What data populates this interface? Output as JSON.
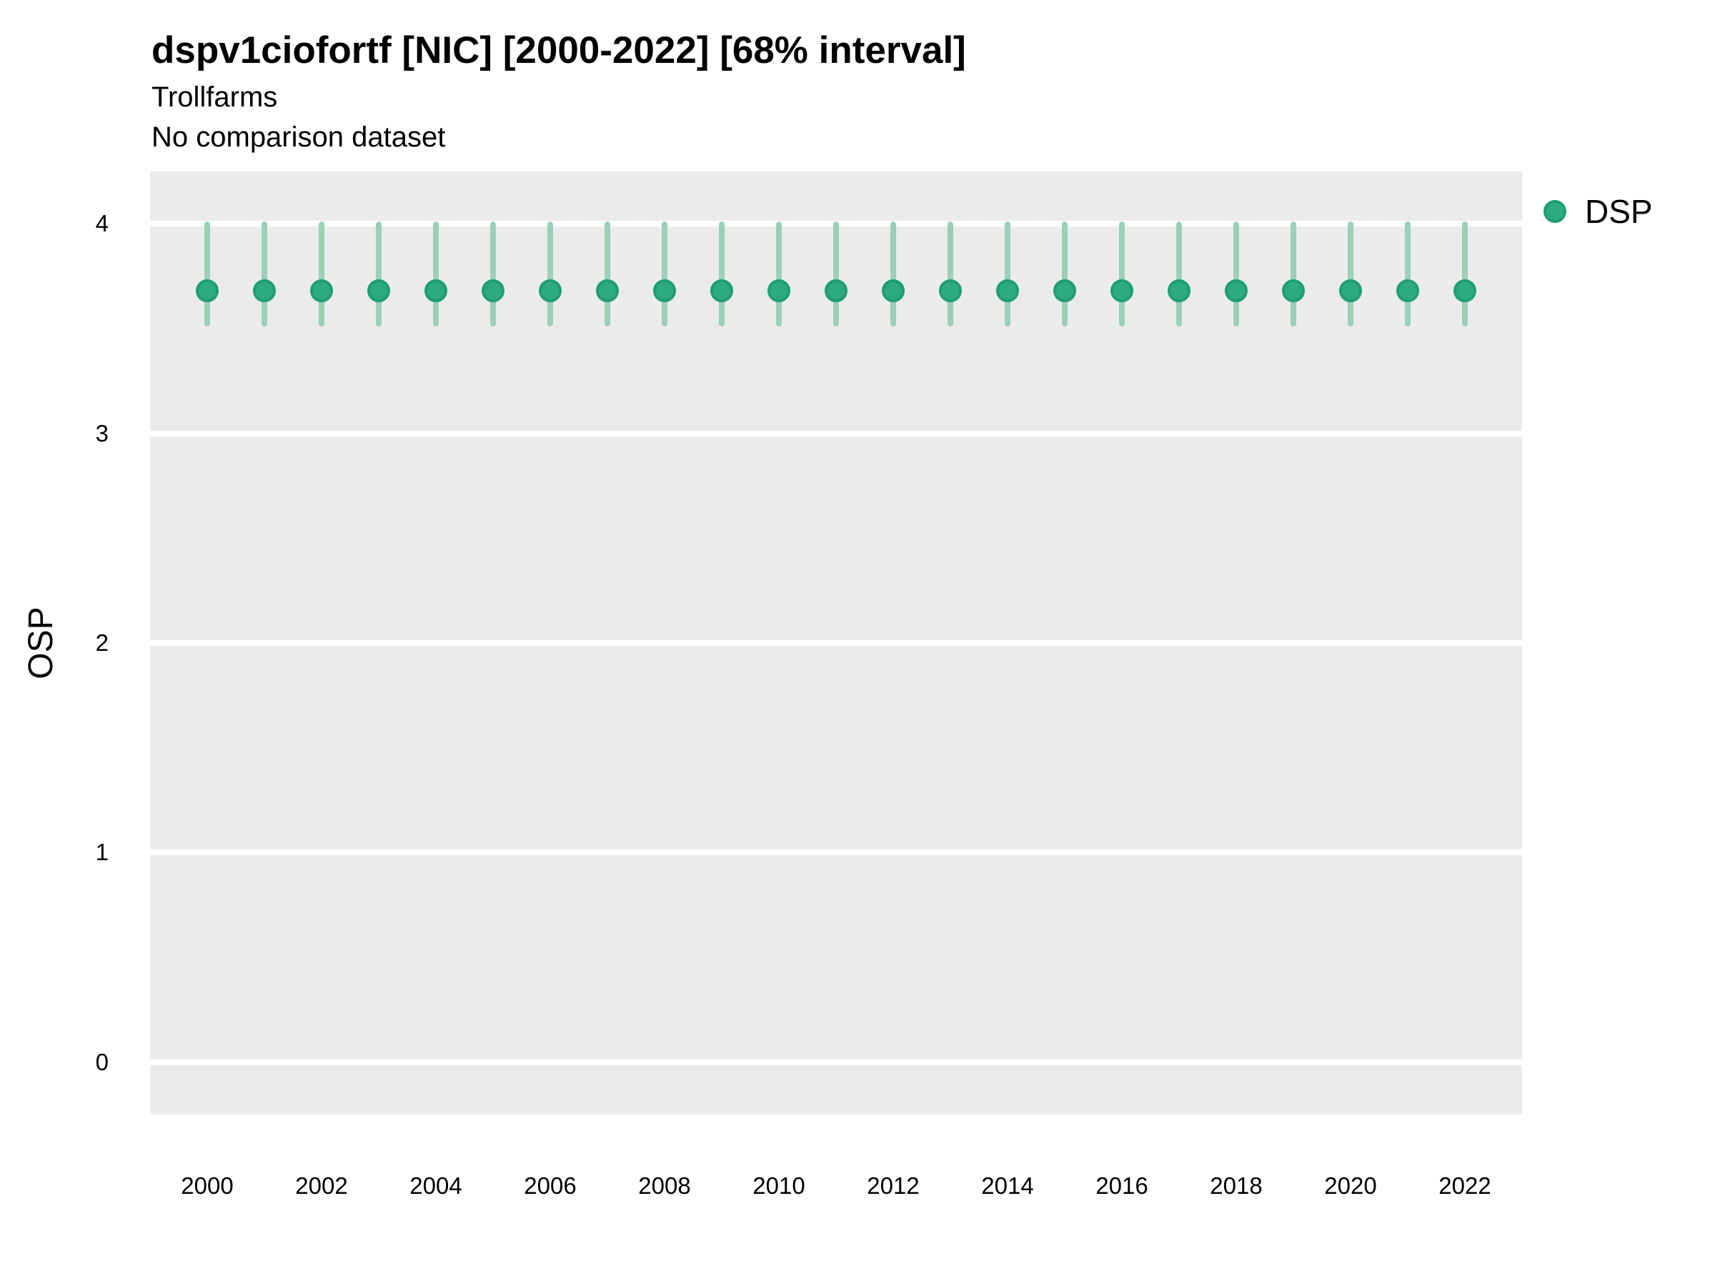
{
  "header": {
    "title": "dspv1ciofortf [NIC] [2000-2022] [68% interval]",
    "subtitle1": "Trollfarms",
    "subtitle2": "No comparison dataset"
  },
  "axes": {
    "y_label": "OSP"
  },
  "legend": {
    "label": "DSP"
  },
  "colors": {
    "panel_background": "#EBEBEB",
    "gridline": "#FFFFFF",
    "point_fill": "#2DAB7F",
    "point_stroke": "#1F9E72",
    "interval_bar": "#9AD0B8",
    "text": "#000000",
    "page_background": "#FFFFFF"
  },
  "chart_data": {
    "type": "pointrange",
    "title": "dspv1ciofortf [NIC] [2000-2022] [68% interval]",
    "subtitle": [
      "Trollfarms",
      "No comparison dataset"
    ],
    "xlabel": "",
    "ylabel": "OSP",
    "interval": "68%",
    "legend_position": "right",
    "grid": "horizontal-major-only",
    "x": [
      2000,
      2001,
      2002,
      2003,
      2004,
      2005,
      2006,
      2007,
      2008,
      2009,
      2010,
      2011,
      2012,
      2013,
      2014,
      2015,
      2016,
      2017,
      2018,
      2019,
      2020,
      2021,
      2022
    ],
    "series": [
      {
        "name": "DSP",
        "estimate": [
          3.68,
          3.68,
          3.68,
          3.68,
          3.68,
          3.68,
          3.68,
          3.68,
          3.68,
          3.68,
          3.68,
          3.68,
          3.68,
          3.68,
          3.68,
          3.68,
          3.68,
          3.68,
          3.68,
          3.68,
          3.68,
          3.68,
          3.68
        ],
        "lower": [
          3.51,
          3.51,
          3.51,
          3.51,
          3.51,
          3.51,
          3.51,
          3.51,
          3.51,
          3.51,
          3.51,
          3.51,
          3.51,
          3.51,
          3.51,
          3.51,
          3.51,
          3.51,
          3.51,
          3.51,
          3.51,
          3.51,
          3.51
        ],
        "upper": [
          4.01,
          4.01,
          4.01,
          4.01,
          4.01,
          4.01,
          4.01,
          4.01,
          4.01,
          4.01,
          4.01,
          4.01,
          4.01,
          4.01,
          4.01,
          4.01,
          4.01,
          4.01,
          4.01,
          4.01,
          4.01,
          4.01,
          4.01
        ]
      }
    ],
    "x_ticks": [
      2000,
      2002,
      2004,
      2006,
      2008,
      2010,
      2012,
      2014,
      2016,
      2018,
      2020,
      2022
    ],
    "y_ticks": [
      4,
      3,
      2,
      1,
      0
    ],
    "y_domain": [
      -0.25,
      4.25
    ],
    "ylim": [
      0,
      4
    ]
  }
}
